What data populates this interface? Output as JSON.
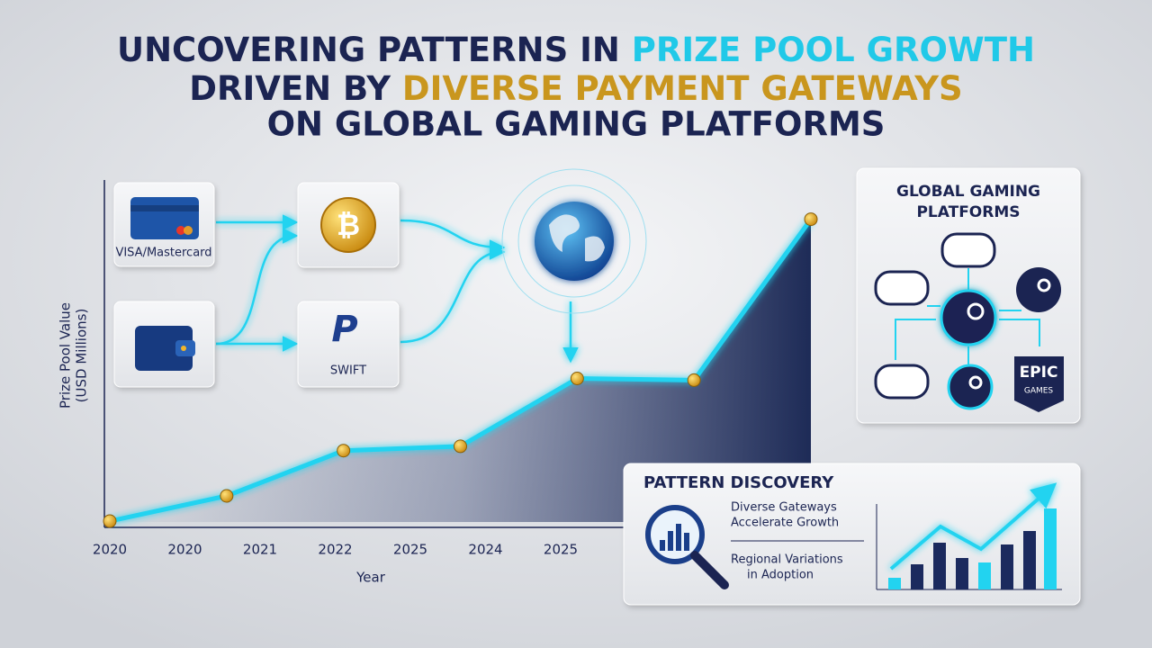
{
  "title": {
    "line1": "UNCOVERING PATTERNS IN ",
    "line1_highlight": "PRIZE POOL GROWTH",
    "line2": "DRIVEN BY ",
    "line2_highlight": "DIVERSE PAYMENT GATEWAYS",
    "line3": "ON GLOBAL GAMING PLATFORMS"
  },
  "gateways": {
    "card": "VISA/Mastercard",
    "transfer": "SWIFT"
  },
  "platforms": {
    "title": [
      "GLOBAL GAMING",
      "PLATFORMS"
    ],
    "epic": [
      "EPIC",
      "GAMES"
    ]
  },
  "pattern_discovery": {
    "title": "PATTERN DISCOVERY",
    "finding1": [
      "Diverse Gateways",
      "Accelerate Growth"
    ],
    "finding2": [
      "Regional Variations",
      "in Adoption"
    ]
  },
  "chart_data": {
    "type": "line",
    "x_label": "Year",
    "y_label": [
      "Prize Pool Value",
      "(USD Millions)"
    ],
    "categories": [
      "2020",
      "2020",
      "2021",
      "2022",
      "2025",
      "2024",
      "2025"
    ],
    "series": [
      {
        "color": "#22d3f0",
        "values": [
          1,
          30,
          82,
          87,
          165,
          163,
          348
        ]
      }
    ],
    "ylim": [
      0,
      360
    ]
  }
}
